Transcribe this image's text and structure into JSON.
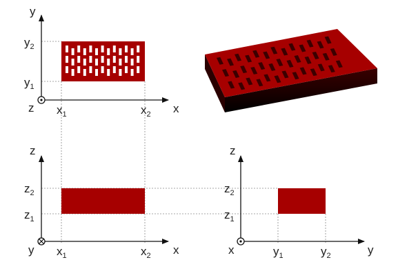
{
  "colors": {
    "solid": "#a60000",
    "solid_dark": "#5a0000",
    "hole": "#ffffff",
    "axis": "#111111",
    "guide": "#888888"
  },
  "top_view": {
    "axis_y": "y",
    "axis_x": "x",
    "origin_axis": "z",
    "tick_y2_base": "y",
    "tick_y2_sub": "2",
    "tick_y1_base": "y",
    "tick_y1_sub": "1",
    "tick_x1_base": "x",
    "tick_x1_sub": "1",
    "tick_x2_base": "x",
    "tick_x2_sub": "2"
  },
  "front_view": {
    "axis_z": "z",
    "axis_x": "x",
    "origin_axis": "y",
    "tick_z2_base": "z",
    "tick_z2_sub": "2",
    "tick_z1_base": "z",
    "tick_z1_sub": "1",
    "tick_x1_base": "x",
    "tick_x1_sub": "1",
    "tick_x2_base": "x",
    "tick_x2_sub": "2"
  },
  "side_view": {
    "axis_z": "z",
    "axis_y": "y",
    "origin_axis": "x",
    "tick_z2_base": "z",
    "tick_z2_sub": "2",
    "tick_z1_base": "z",
    "tick_z1_sub": "1",
    "tick_y1_base": "y",
    "tick_y1_sub": "1",
    "tick_y2_base": "y",
    "tick_y2_sub": "2"
  }
}
